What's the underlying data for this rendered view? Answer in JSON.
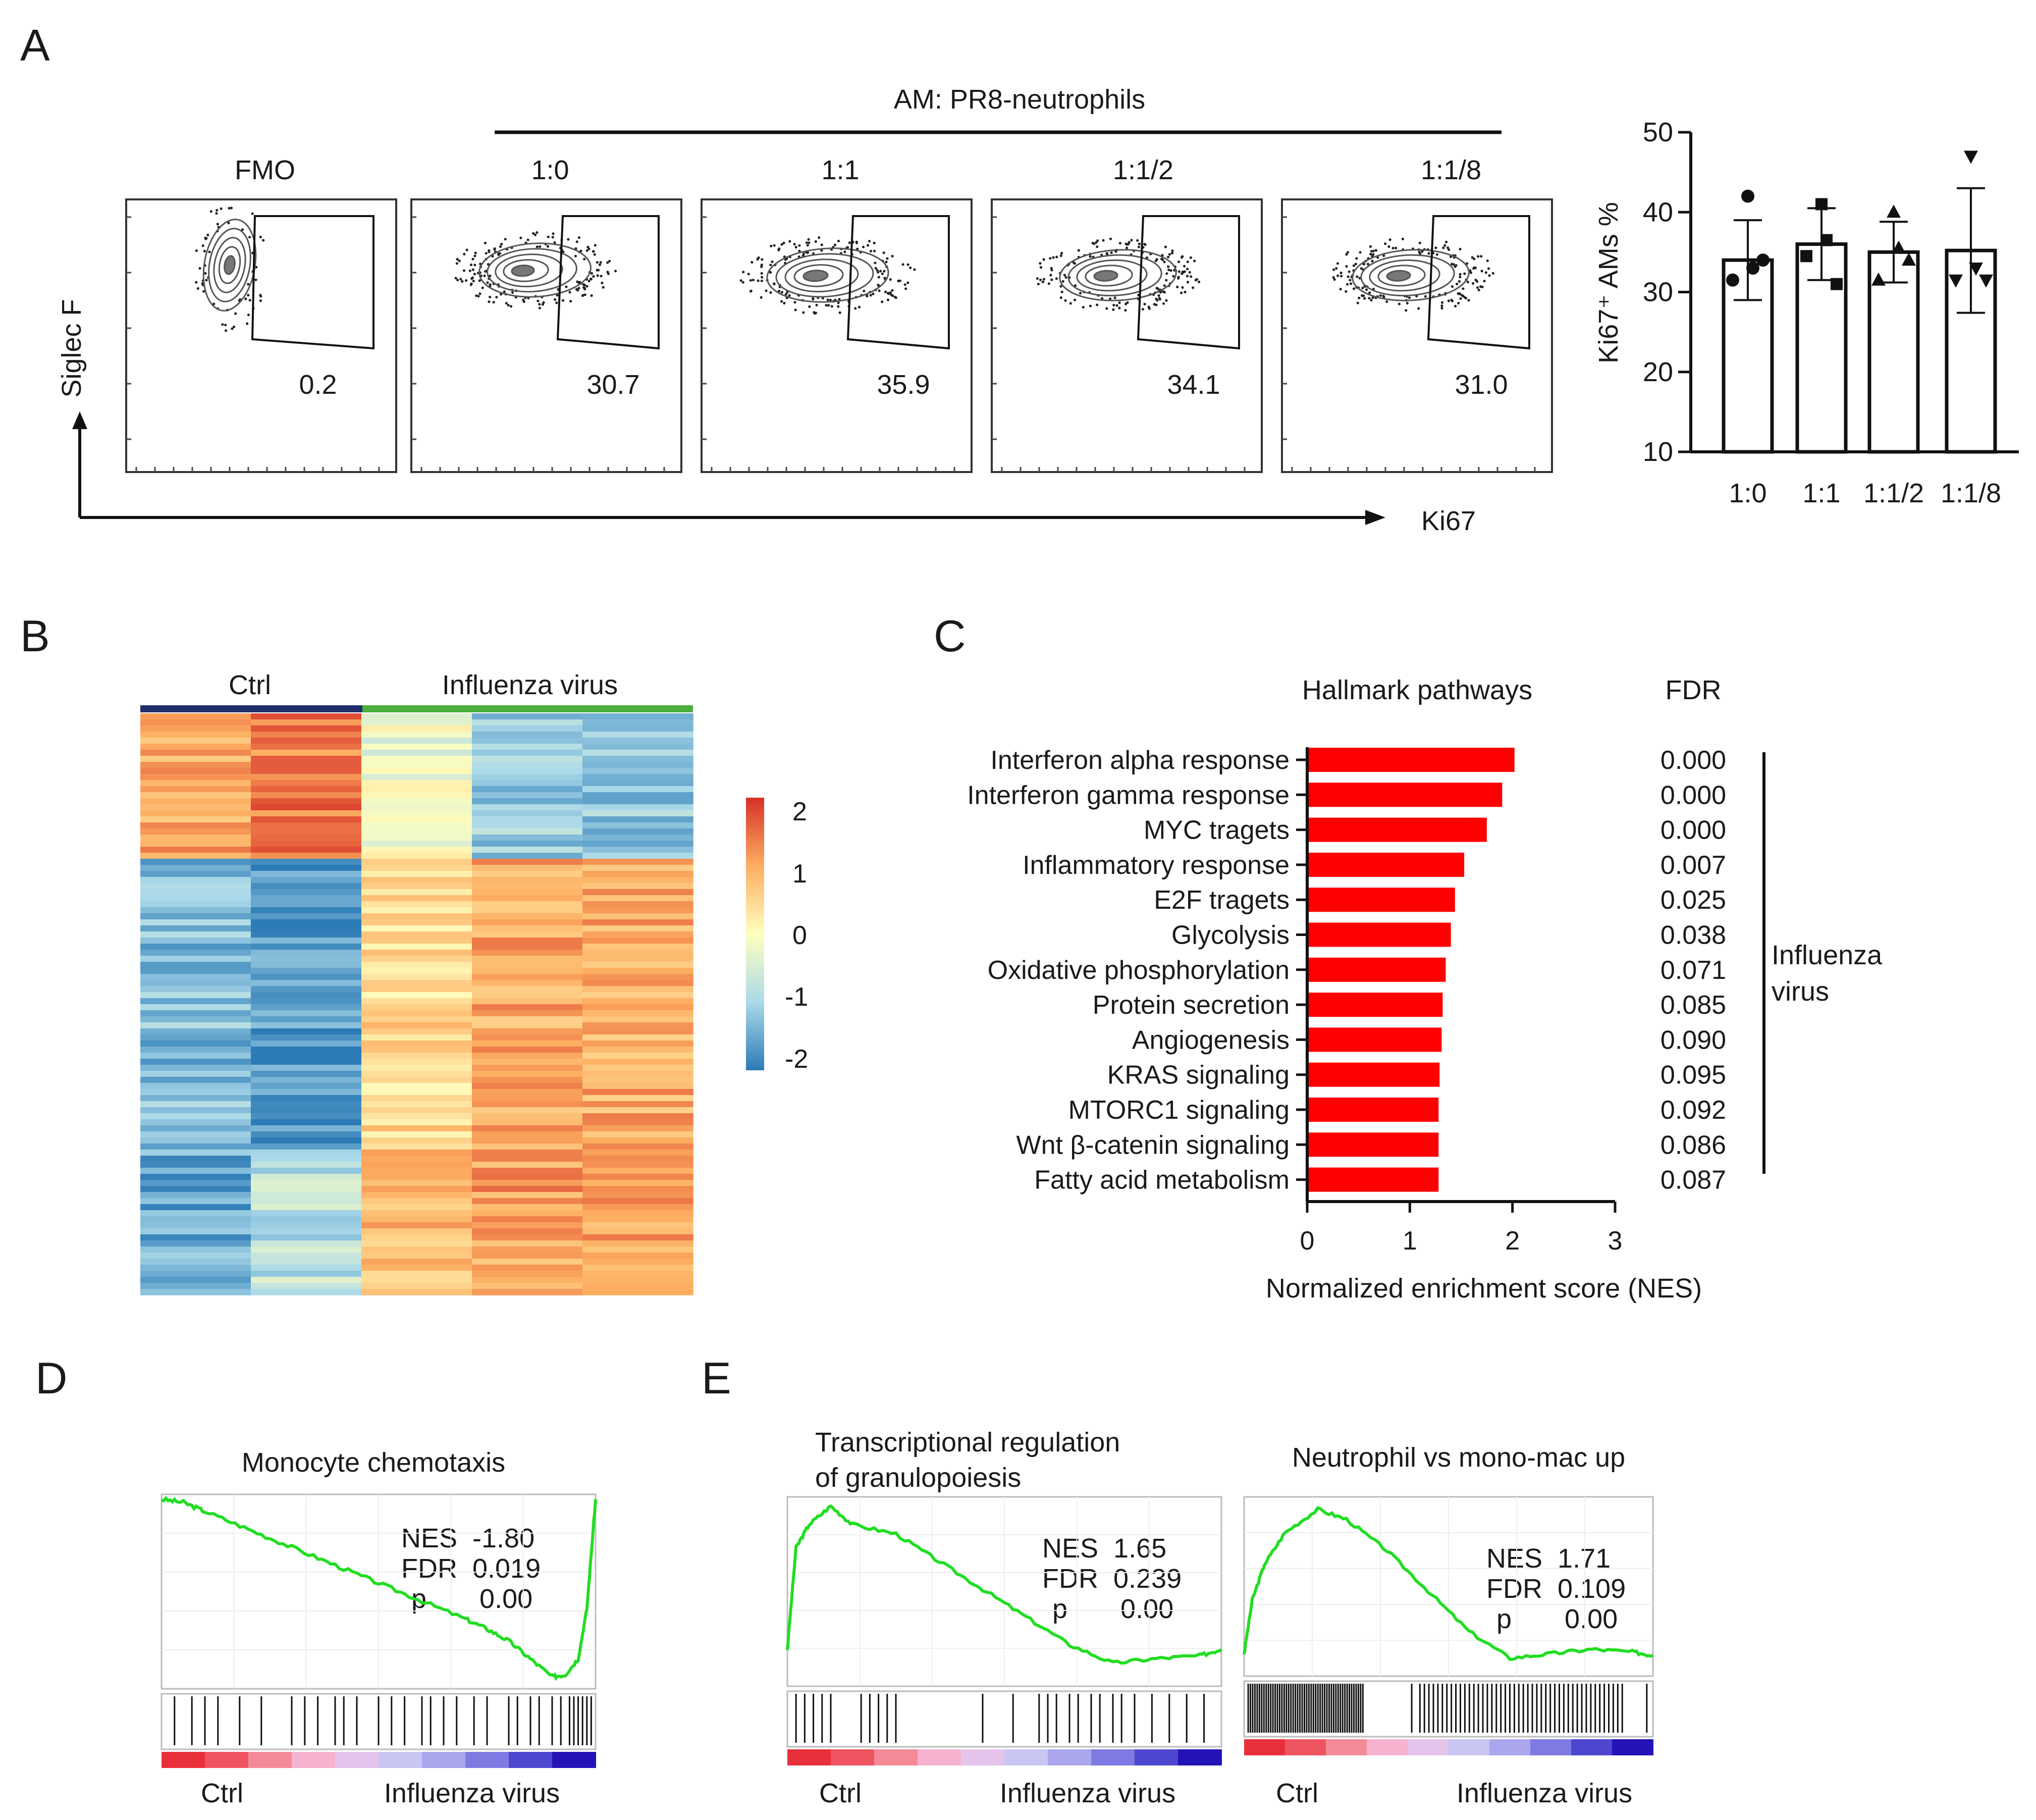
{
  "panel_labels": {
    "a": "A",
    "b": "B",
    "c": "C",
    "d": "D",
    "e": "E"
  },
  "panel_a": {
    "group_title": "AM: PR8-neutrophils",
    "y_axis_label": "Siglec F",
    "x_axis_label": "Ki67",
    "flow_plots": [
      {
        "title": "FMO",
        "gate_value": "0.2"
      },
      {
        "title": "1:0",
        "gate_value": "30.7"
      },
      {
        "title": "1:1",
        "gate_value": "35.9"
      },
      {
        "title": "1:1/2",
        "gate_value": "34.1"
      },
      {
        "title": "1:1/8",
        "gate_value": "31.0"
      }
    ]
  },
  "panel_b": {
    "col_labels": {
      "ctrl": "Ctrl",
      "flu": "Influenza virus"
    },
    "colorbar_ticks": [
      "2",
      "1",
      "0",
      "-1",
      "-2"
    ],
    "colors": {
      "high": "#d73027",
      "mid": "#ffffbf",
      "low": "#2c7bb6",
      "ctrl_bar": "#1f2f6b",
      "flu_bar": "#4caf3b"
    }
  },
  "panel_c": {
    "title": "Hallmark pathways",
    "fdr_header": "FDR",
    "group_label_line1": "Influenza",
    "group_label_line2": "virus",
    "bar_color": "#ff0000"
  },
  "panel_d": {
    "title": "Monocyte chemotaxis",
    "stats": {
      "nes": "NES  -1.80",
      "fdr": "FDR  0.019",
      "p": "p       0.00"
    },
    "x_left": "Ctrl",
    "x_right": "Influenza virus"
  },
  "panel_e": {
    "left": {
      "title_line1": "Transcriptional regulation",
      "title_line2": "of granulopoiesis",
      "stats": {
        "nes": "NES  1.65",
        "fdr": "FDR  0.239",
        "p": "p       0.00"
      },
      "x_left": "Ctrl",
      "x_right": "Influenza virus"
    },
    "right": {
      "title": "Neutrophil vs mono-mac up",
      "stats": {
        "nes": "NES  1.71",
        "fdr": "FDR  0.109",
        "p": "p       0.00"
      },
      "x_left": "Ctrl",
      "x_right": "Influenza virus"
    },
    "curve_color": "#22dd22"
  },
  "chart_data": [
    {
      "type": "bar",
      "panel": "A-right",
      "categories": [
        "1:0",
        "1:1",
        "1:1/2",
        "1:1/8"
      ],
      "values": [
        34,
        36,
        35,
        35.2
      ],
      "errors": [
        5,
        4.5,
        3.8,
        7.8
      ],
      "points": [
        [
          42,
          31.5,
          33,
          34
        ],
        [
          41,
          34.5,
          36.5,
          31
        ],
        [
          40,
          31.5,
          35.5,
          34
        ],
        [
          47,
          31.5,
          33,
          31.5
        ]
      ],
      "marker_shapes": [
        "circle",
        "square",
        "triangle",
        "triangle-down"
      ],
      "title": "",
      "xlabel": "",
      "ylabel": "Ki67⁺ AMs %",
      "ylim": [
        10,
        50
      ],
      "yticks": [
        "10",
        "20",
        "30",
        "40",
        "50"
      ]
    },
    {
      "type": "bar",
      "orientation": "horizontal",
      "panel": "C",
      "categories": [
        "Interferon alpha response",
        "Interferon gamma response",
        "MYC tragets",
        "Inflammatory response",
        "E2F tragets",
        "Glycolysis",
        "Oxidative phosphorylation",
        "Protein secretion",
        "Angiogenesis",
        "KRAS signaling",
        "MTORC1 signaling",
        "Wnt β-catenin signaling",
        "Fatty acid metabolism"
      ],
      "values": [
        2.02,
        1.9,
        1.75,
        1.53,
        1.44,
        1.4,
        1.35,
        1.32,
        1.31,
        1.29,
        1.28,
        1.28,
        1.28
      ],
      "fdr": [
        "0.000",
        "0.000",
        "0.000",
        "0.007",
        "0.025",
        "0.038",
        "0.071",
        "0.085",
        "0.090",
        "0.095",
        "0.092",
        "0.086",
        "0.087"
      ],
      "title": "Hallmark pathways",
      "xlabel": "Normalized enrichment score (NES)",
      "xlim": [
        0,
        3
      ],
      "xticks": [
        "0",
        "1",
        "2",
        "3"
      ]
    },
    {
      "type": "heatmap",
      "panel": "B",
      "columns": [
        "Ctrl 1",
        "Ctrl 2",
        "Influenza 1",
        "Influenza 2",
        "Influenza 3"
      ],
      "row_blocks": [
        {
          "fraction": 0.25,
          "values": [
            1.0,
            1.4,
            -0.2,
            -1.1,
            -1.2
          ]
        },
        {
          "fraction": 0.5,
          "values": [
            -1.3,
            -1.7,
            0.5,
            1.0,
            1.0
          ]
        },
        {
          "fraction": 0.25,
          "values": [
            -1.5,
            -0.8,
            0.8,
            1.1,
            1.0
          ]
        }
      ],
      "color_range": [
        -2,
        2
      ]
    },
    {
      "type": "line",
      "panel": "D",
      "title": "Monocyte chemotaxis",
      "x": [
        0,
        0.05,
        0.1,
        0.2,
        0.3,
        0.4,
        0.5,
        0.6,
        0.7,
        0.75,
        0.8,
        0.85,
        0.9,
        0.93,
        0.96,
        0.98,
        1.0
      ],
      "y": [
        0,
        -0.03,
        -0.12,
        -0.3,
        -0.48,
        -0.66,
        -0.84,
        -1.02,
        -1.2,
        -1.3,
        -1.42,
        -1.6,
        -1.78,
        -1.76,
        -1.6,
        -1.1,
        0
      ]
    },
    {
      "type": "line",
      "panel": "E-left",
      "title": "Transcriptional regulation of granulopoiesis",
      "x": [
        0,
        0.02,
        0.05,
        0.1,
        0.15,
        0.25,
        0.35,
        0.45,
        0.55,
        0.65,
        0.75,
        0.85,
        0.95,
        1.0
      ],
      "y": [
        0.1,
        1.2,
        1.45,
        1.65,
        1.45,
        1.35,
        1.05,
        0.75,
        0.45,
        0.15,
        -0.05,
        0.0,
        0.03,
        0.1
      ]
    },
    {
      "type": "line",
      "panel": "E-right",
      "title": "Neutrophil vs mono-mac up",
      "x": [
        0,
        0.02,
        0.05,
        0.1,
        0.18,
        0.25,
        0.35,
        0.45,
        0.55,
        0.65,
        0.75,
        0.85,
        0.95,
        1.0
      ],
      "y": [
        0.1,
        0.7,
        1.1,
        1.45,
        1.71,
        1.6,
        1.25,
        0.8,
        0.35,
        0.05,
        0.1,
        0.15,
        0.12,
        0.08
      ]
    }
  ]
}
